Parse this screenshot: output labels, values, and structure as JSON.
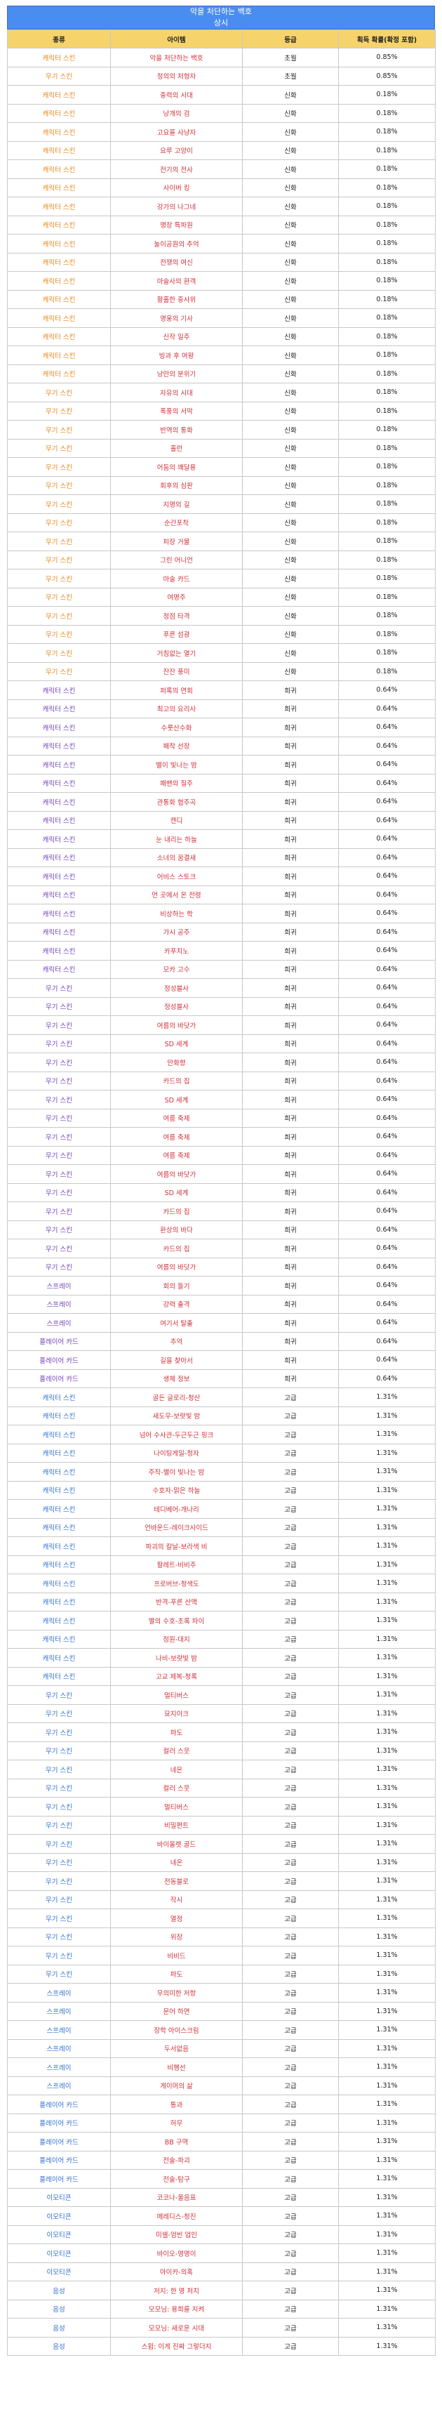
{
  "header": {
    "title": "악을 처단하는 백호",
    "subtitle": "상시"
  },
  "columns": [
    "종류",
    "아이템",
    "등급",
    "획득 확률(확정 포함)"
  ],
  "colors": {
    "orange": "#e8841a",
    "purple": "#7040b8",
    "blue": "#2f6fd0",
    "item": "#d0303a",
    "header_bg": "#4a8df0",
    "col_header_bg": "#f6d36b"
  },
  "rows": [
    {
      "type": "캐릭터 스킨",
      "item": "악을 처단하는 백호",
      "grade": "초월",
      "prob": "0.85%",
      "tone": "orange"
    },
    {
      "type": "무기 스킨",
      "item": "정의의 처형자",
      "grade": "초월",
      "prob": "0.85%",
      "tone": "orange"
    },
    {
      "type": "캐릭터 스킨",
      "item": "중력의 시대",
      "grade": "신화",
      "prob": "0.18%",
      "tone": "orange"
    },
    {
      "type": "캐릭터 스킨",
      "item": "낭개의 검",
      "grade": "신화",
      "prob": "0.18%",
      "tone": "orange"
    },
    {
      "type": "캐릭터 스킨",
      "item": "고요를 사냥자",
      "grade": "신화",
      "prob": "0.18%",
      "tone": "orange"
    },
    {
      "type": "캐릭터 스킨",
      "item": "요루 고양이",
      "grade": "신화",
      "prob": "0.18%",
      "tone": "orange"
    },
    {
      "type": "캐릭터 스킨",
      "item": "전기의 전사",
      "grade": "신화",
      "prob": "0.18%",
      "tone": "orange"
    },
    {
      "type": "캐릭터 스킨",
      "item": "사이버 킹",
      "grade": "신화",
      "prob": "0.18%",
      "tone": "orange"
    },
    {
      "type": "캐릭터 스킨",
      "item": "강가의 나그네",
      "grade": "신화",
      "prob": "0.18%",
      "tone": "orange"
    },
    {
      "type": "캐릭터 스킨",
      "item": "맹장 특파원",
      "grade": "신화",
      "prob": "0.18%",
      "tone": "orange"
    },
    {
      "type": "캐릭터 스킨",
      "item": "놀이공원의 추억",
      "grade": "신화",
      "prob": "0.18%",
      "tone": "orange"
    },
    {
      "type": "캐릭터 스킨",
      "item": "전쟁의 여신",
      "grade": "신화",
      "prob": "0.18%",
      "tone": "orange"
    },
    {
      "type": "캐릭터 스킨",
      "item": "마술사의 환객",
      "grade": "신화",
      "prob": "0.18%",
      "tone": "orange"
    },
    {
      "type": "캐릭터 스킨",
      "item": "황홀한 중사위",
      "grade": "신화",
      "prob": "0.18%",
      "tone": "orange"
    },
    {
      "type": "캐릭터 스킨",
      "item": "영웅의 기사",
      "grade": "신화",
      "prob": "0.18%",
      "tone": "orange"
    },
    {
      "type": "캐릭터 스킨",
      "item": "신작 일주",
      "grade": "신화",
      "prob": "0.18%",
      "tone": "orange"
    },
    {
      "type": "캐릭터 스킨",
      "item": "빙과 후 여왕",
      "grade": "신화",
      "prob": "0.18%",
      "tone": "orange"
    },
    {
      "type": "캐릭터 스킨",
      "item": "낭만의 분위기",
      "grade": "신화",
      "prob": "0.18%",
      "tone": "orange"
    },
    {
      "type": "무기 스킨",
      "item": "자유의 시대",
      "grade": "신화",
      "prob": "0.18%",
      "tone": "orange"
    },
    {
      "type": "무기 스킨",
      "item": "폭풍의 서막",
      "grade": "신화",
      "prob": "0.18%",
      "tone": "orange"
    },
    {
      "type": "무기 스킨",
      "item": "반역의 통화",
      "grade": "신화",
      "prob": "0.18%",
      "tone": "orange"
    },
    {
      "type": "무기 스킨",
      "item": "홀런",
      "grade": "신화",
      "prob": "0.18%",
      "tone": "orange"
    },
    {
      "type": "무기 스킨",
      "item": "어둠의 꽤달용",
      "grade": "신화",
      "prob": "0.18%",
      "tone": "orange"
    },
    {
      "type": "무기 스킨",
      "item": "회후의 심판",
      "grade": "신화",
      "prob": "0.18%",
      "tone": "orange"
    },
    {
      "type": "무기 스킨",
      "item": "지명의 길",
      "grade": "신화",
      "prob": "0.18%",
      "tone": "orange"
    },
    {
      "type": "무기 스킨",
      "item": "순간포착",
      "grade": "신화",
      "prob": "0.18%",
      "tone": "orange"
    },
    {
      "type": "무기 스킨",
      "item": "피장 거물",
      "grade": "신화",
      "prob": "0.18%",
      "tone": "orange"
    },
    {
      "type": "무기 스킨",
      "item": "그린 어니언",
      "grade": "신화",
      "prob": "0.18%",
      "tone": "orange"
    },
    {
      "type": "무기 스킨",
      "item": "마술 카드",
      "grade": "신화",
      "prob": "0.18%",
      "tone": "orange"
    },
    {
      "type": "무기 스킨",
      "item": "여명주",
      "grade": "신화",
      "prob": "0.18%",
      "tone": "orange"
    },
    {
      "type": "무기 스킨",
      "item": "정점 타격",
      "grade": "신화",
      "prob": "0.18%",
      "tone": "orange"
    },
    {
      "type": "무기 스킨",
      "item": "푸른 섬광",
      "grade": "신화",
      "prob": "0.18%",
      "tone": "orange"
    },
    {
      "type": "무기 스킨",
      "item": "거침없는 열기",
      "grade": "신화",
      "prob": "0.18%",
      "tone": "orange"
    },
    {
      "type": "무기 스킨",
      "item": "잔잔 풍미",
      "grade": "신화",
      "prob": "0.18%",
      "tone": "orange"
    },
    {
      "type": "캐릭터 스킨",
      "item": "퍼록의 연회",
      "grade": "희귀",
      "prob": "0.64%",
      "tone": "purple"
    },
    {
      "type": "캐릭터 스킨",
      "item": "최고의 요리사",
      "grade": "희귀",
      "prob": "0.64%",
      "tone": "purple"
    },
    {
      "type": "캐릭터 스킨",
      "item": "수룻산수화",
      "grade": "희귀",
      "prob": "0.64%",
      "tone": "purple"
    },
    {
      "type": "캐릭터 스킨",
      "item": "패착 선장",
      "grade": "희귀",
      "prob": "0.64%",
      "tone": "purple"
    },
    {
      "type": "캐릭터 스킨",
      "item": "별이 빛나는 밤",
      "grade": "희귀",
      "prob": "0.64%",
      "tone": "purple"
    },
    {
      "type": "캐릭터 스킨",
      "item": "패밴의 질주",
      "grade": "희귀",
      "prob": "0.64%",
      "tone": "purple"
    },
    {
      "type": "캐릭터 스킨",
      "item": "관통화 협주곡",
      "grade": "희귀",
      "prob": "0.64%",
      "tone": "purple"
    },
    {
      "type": "캐릭터 스킨",
      "item": "캔디",
      "grade": "희귀",
      "prob": "0.64%",
      "tone": "purple"
    },
    {
      "type": "캐릭터 스킨",
      "item": "눈 내리는 하늘",
      "grade": "희귀",
      "prob": "0.64%",
      "tone": "purple"
    },
    {
      "type": "캐릭터 스킨",
      "item": "소녀의 꿈결새",
      "grade": "희귀",
      "prob": "0.64%",
      "tone": "purple"
    },
    {
      "type": "캐릭터 스킨",
      "item": "어비스 스토크",
      "grade": "희귀",
      "prob": "0.64%",
      "tone": "purple"
    },
    {
      "type": "캐릭터 스킨",
      "item": "먼 곳에서 온 전령",
      "grade": "희귀",
      "prob": "0.64%",
      "tone": "purple"
    },
    {
      "type": "캐릭터 스킨",
      "item": "비상하는 학",
      "grade": "희귀",
      "prob": "0.64%",
      "tone": "purple"
    },
    {
      "type": "캐릭터 스킨",
      "item": "가시 공주",
      "grade": "희귀",
      "prob": "0.64%",
      "tone": "purple"
    },
    {
      "type": "캐릭터 스킨",
      "item": "카푸치노",
      "grade": "희귀",
      "prob": "0.64%",
      "tone": "purple"
    },
    {
      "type": "캐릭터 스킨",
      "item": "모카 고수",
      "grade": "희귀",
      "prob": "0.64%",
      "tone": "purple"
    },
    {
      "type": "무기 스킨",
      "item": "정성블사",
      "grade": "희귀",
      "prob": "0.64%",
      "tone": "purple"
    },
    {
      "type": "무기 스킨",
      "item": "정성블사",
      "grade": "희귀",
      "prob": "0.64%",
      "tone": "purple"
    },
    {
      "type": "무기 스킨",
      "item": "여름의 바닷가",
      "grade": "희귀",
      "prob": "0.64%",
      "tone": "purple"
    },
    {
      "type": "무기 스킨",
      "item": "SD 세계",
      "grade": "희귀",
      "prob": "0.64%",
      "tone": "purple"
    },
    {
      "type": "무기 스킨",
      "item": "만화향",
      "grade": "희귀",
      "prob": "0.64%",
      "tone": "purple"
    },
    {
      "type": "무기 스킨",
      "item": "카드의 집",
      "grade": "희귀",
      "prob": "0.64%",
      "tone": "purple"
    },
    {
      "type": "무기 스킨",
      "item": "SD 세계",
      "grade": "희귀",
      "prob": "0.64%",
      "tone": "purple"
    },
    {
      "type": "무기 스킨",
      "item": "여름 축제",
      "grade": "희귀",
      "prob": "0.64%",
      "tone": "purple"
    },
    {
      "type": "무기 스킨",
      "item": "여름 축제",
      "grade": "희귀",
      "prob": "0.64%",
      "tone": "purple"
    },
    {
      "type": "무기 스킨",
      "item": "여름 축제",
      "grade": "희귀",
      "prob": "0.64%",
      "tone": "purple"
    },
    {
      "type": "무기 스킨",
      "item": "여름의 바닷가",
      "grade": "희귀",
      "prob": "0.64%",
      "tone": "purple"
    },
    {
      "type": "무기 스킨",
      "item": "SD 세계",
      "grade": "희귀",
      "prob": "0.64%",
      "tone": "purple"
    },
    {
      "type": "무기 스킨",
      "item": "카드의 집",
      "grade": "희귀",
      "prob": "0.64%",
      "tone": "purple"
    },
    {
      "type": "무기 스킨",
      "item": "환상의 바다",
      "grade": "희귀",
      "prob": "0.64%",
      "tone": "purple"
    },
    {
      "type": "무기 스킨",
      "item": "카드의 집",
      "grade": "희귀",
      "prob": "0.64%",
      "tone": "purple"
    },
    {
      "type": "무기 스킨",
      "item": "여름의 바닷가",
      "grade": "희귀",
      "prob": "0.64%",
      "tone": "purple"
    },
    {
      "type": "스프레이",
      "item": "회의 들기",
      "grade": "희귀",
      "prob": "0.64%",
      "tone": "purple"
    },
    {
      "type": "스프레이",
      "item": "강력 출격",
      "grade": "희귀",
      "prob": "0.64%",
      "tone": "purple"
    },
    {
      "type": "스프레이",
      "item": "여기서 탈출",
      "grade": "희귀",
      "prob": "0.64%",
      "tone": "purple"
    },
    {
      "type": "플레이어 카드",
      "item": "추억",
      "grade": "희귀",
      "prob": "0.64%",
      "tone": "purple"
    },
    {
      "type": "플레이어 카드",
      "item": "길을 찾아서",
      "grade": "희귀",
      "prob": "0.64%",
      "tone": "purple"
    },
    {
      "type": "플레이어 카드",
      "item": "생체 정보",
      "grade": "희귀",
      "prob": "0.64%",
      "tone": "purple"
    },
    {
      "type": "캐릭터 스킨",
      "item": "골든 글로리-청산",
      "grade": "고급",
      "prob": "1.31%",
      "tone": "blue"
    },
    {
      "type": "캐릭터 스킨",
      "item": "새도우-보랏빛 밤",
      "grade": "고급",
      "prob": "1.31%",
      "tone": "blue"
    },
    {
      "type": "캐릭터 스킨",
      "item": "넘어 수사관-두근두근 핑크",
      "grade": "고급",
      "prob": "1.31%",
      "tone": "blue"
    },
    {
      "type": "캐릭터 스킨",
      "item": "나이팅게일-청자",
      "grade": "고급",
      "prob": "1.31%",
      "tone": "blue"
    },
    {
      "type": "캐릭터 스킨",
      "item": "주작-별이 빛나는 밤",
      "grade": "고급",
      "prob": "1.31%",
      "tone": "blue"
    },
    {
      "type": "캐릭터 스킨",
      "item": "수호자-맑은 하늘",
      "grade": "고급",
      "prob": "1.31%",
      "tone": "blue"
    },
    {
      "type": "캐릭터 스킨",
      "item": "테디베어-개나리",
      "grade": "고급",
      "prob": "1.31%",
      "tone": "blue"
    },
    {
      "type": "캐릭터 스킨",
      "item": "언바운드-레이크사이드",
      "grade": "고급",
      "prob": "1.31%",
      "tone": "blue"
    },
    {
      "type": "캐릭터 스킨",
      "item": "파괴의 칼날-보라색 비",
      "grade": "고급",
      "prob": "1.31%",
      "tone": "blue"
    },
    {
      "type": "캐릭터 스킨",
      "item": "팔레트-비비주",
      "grade": "고급",
      "prob": "1.31%",
      "tone": "blue"
    },
    {
      "type": "캐릭터 스킨",
      "item": "프로버브-청색도",
      "grade": "고급",
      "prob": "1.31%",
      "tone": "blue"
    },
    {
      "type": "캐릭터 스킨",
      "item": "반격-푸른 산맥",
      "grade": "고급",
      "prob": "1.31%",
      "tone": "blue"
    },
    {
      "type": "캐릭터 스킨",
      "item": "별의 수호-초록 파이",
      "grade": "고급",
      "prob": "1.31%",
      "tone": "blue"
    },
    {
      "type": "캐릭터 스킨",
      "item": "정원-대지",
      "grade": "고급",
      "prob": "1.31%",
      "tone": "blue"
    },
    {
      "type": "캐릭터 스킨",
      "item": "나비-보랏빛 밤",
      "grade": "고급",
      "prob": "1.31%",
      "tone": "blue"
    },
    {
      "type": "캐릭터 스킨",
      "item": "고교 제복-청록",
      "grade": "고급",
      "prob": "1.31%",
      "tone": "blue"
    },
    {
      "type": "무기 스킨",
      "item": "멀티버스",
      "grade": "고급",
      "prob": "1.31%",
      "tone": "blue"
    },
    {
      "type": "무기 스킨",
      "item": "묘지이크",
      "grade": "고급",
      "prob": "1.31%",
      "tone": "blue"
    },
    {
      "type": "무기 스킨",
      "item": "파도",
      "grade": "고급",
      "prob": "1.31%",
      "tone": "blue"
    },
    {
      "type": "무기 스킨",
      "item": "컬러 스웃",
      "grade": "고급",
      "prob": "1.31%",
      "tone": "blue"
    },
    {
      "type": "무기 스킨",
      "item": "네온",
      "grade": "고급",
      "prob": "1.31%",
      "tone": "blue"
    },
    {
      "type": "무기 스킨",
      "item": "컬러 스웃",
      "grade": "고급",
      "prob": "1.31%",
      "tone": "blue"
    },
    {
      "type": "무기 스킨",
      "item": "멀티버스",
      "grade": "고급",
      "prob": "1.31%",
      "tone": "blue"
    },
    {
      "type": "무기 스킨",
      "item": "비밀편트",
      "grade": "고급",
      "prob": "1.31%",
      "tone": "blue"
    },
    {
      "type": "무기 스킨",
      "item": "바이올렛 골드",
      "grade": "고급",
      "prob": "1.31%",
      "tone": "blue"
    },
    {
      "type": "무기 스킨",
      "item": "네온",
      "grade": "고급",
      "prob": "1.31%",
      "tone": "blue"
    },
    {
      "type": "무기 스킨",
      "item": "전동블로",
      "grade": "고급",
      "prob": "1.31%",
      "tone": "blue"
    },
    {
      "type": "무기 스킨",
      "item": "작시",
      "grade": "고급",
      "prob": "1.31%",
      "tone": "blue"
    },
    {
      "type": "무기 스킨",
      "item": "열정",
      "grade": "고급",
      "prob": "1.31%",
      "tone": "blue"
    },
    {
      "type": "무기 스킨",
      "item": "위장",
      "grade": "고급",
      "prob": "1.31%",
      "tone": "blue"
    },
    {
      "type": "무기 스킨",
      "item": "비비드",
      "grade": "고급",
      "prob": "1.31%",
      "tone": "blue"
    },
    {
      "type": "무기 스킨",
      "item": "파도",
      "grade": "고급",
      "prob": "1.31%",
      "tone": "blue"
    },
    {
      "type": "스프레이",
      "item": "무의미한 저항",
      "grade": "고급",
      "prob": "1.31%",
      "tone": "blue"
    },
    {
      "type": "스프레이",
      "item": "문어 하면",
      "grade": "고급",
      "prob": "1.31%",
      "tone": "blue"
    },
    {
      "type": "스프레이",
      "item": "장학 아이스크림",
      "grade": "고급",
      "prob": "1.31%",
      "tone": "blue"
    },
    {
      "type": "스프레이",
      "item": "두서없음",
      "grade": "고급",
      "prob": "1.31%",
      "tone": "blue"
    },
    {
      "type": "스프레이",
      "item": "비행선",
      "grade": "고급",
      "prob": "1.31%",
      "tone": "blue"
    },
    {
      "type": "스프레이",
      "item": "게이머의 삶",
      "grade": "고급",
      "prob": "1.31%",
      "tone": "blue"
    },
    {
      "type": "플레이어 카드",
      "item": "통과",
      "grade": "고급",
      "prob": "1.31%",
      "tone": "blue"
    },
    {
      "type": "플레이어 카드",
      "item": "허무",
      "grade": "고급",
      "prob": "1.31%",
      "tone": "blue"
    },
    {
      "type": "플레이어 카드",
      "item": "BB 구역",
      "grade": "고급",
      "prob": "1.31%",
      "tone": "blue"
    },
    {
      "type": "플레이어 카드",
      "item": "전술-파괴",
      "grade": "고급",
      "prob": "1.31%",
      "tone": "blue"
    },
    {
      "type": "플레이어 카드",
      "item": "전술-탐구",
      "grade": "고급",
      "prob": "1.31%",
      "tone": "blue"
    },
    {
      "type": "이모티콘",
      "item": "코코나-울음표",
      "grade": "고급",
      "prob": "1.31%",
      "tone": "blue"
    },
    {
      "type": "이모티콘",
      "item": "메레디스-청진",
      "grade": "고급",
      "prob": "1.31%",
      "tone": "blue"
    },
    {
      "type": "이모티콘",
      "item": "미쉘-엄빈 업인",
      "grade": "고급",
      "prob": "1.31%",
      "tone": "blue"
    },
    {
      "type": "이모티콘",
      "item": "바이오-명명이",
      "grade": "고급",
      "prob": "1.31%",
      "tone": "blue"
    },
    {
      "type": "이모티콘",
      "item": "아이카-의혹",
      "grade": "고급",
      "prob": "1.31%",
      "tone": "blue"
    },
    {
      "type": "음성",
      "item": "저지: 한 명 처치",
      "grade": "고급",
      "prob": "1.31%",
      "tone": "blue"
    },
    {
      "type": "음성",
      "item": "모모님: 용희를 지켜",
      "grade": "고급",
      "prob": "1.31%",
      "tone": "blue"
    },
    {
      "type": "음성",
      "item": "모모님: 새로운 시대",
      "grade": "고급",
      "prob": "1.31%",
      "tone": "blue"
    },
    {
      "type": "음성",
      "item": "스윔: 이게 진짜 그렇더지",
      "grade": "고급",
      "prob": "1.31%",
      "tone": "blue"
    }
  ]
}
